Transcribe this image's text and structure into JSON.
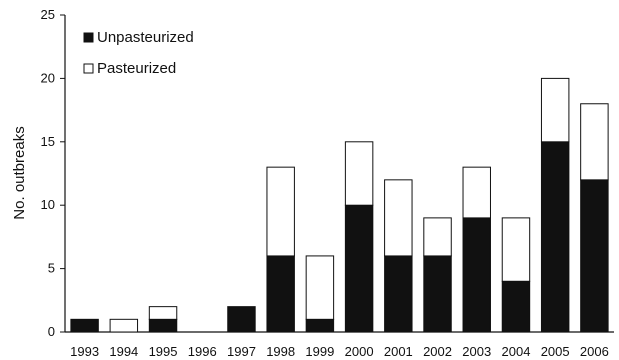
{
  "chart_data": {
    "type": "bar",
    "stacked": true,
    "title": "",
    "xlabel": "",
    "ylabel": "No. outbreaks",
    "ylim": [
      0,
      25
    ],
    "yticks": [
      0,
      5,
      10,
      15,
      20,
      25
    ],
    "grid": false,
    "legend_position": "top-left",
    "categories": [
      "1993",
      "1994",
      "1995",
      "1996",
      "1997",
      "1998",
      "1999",
      "2000",
      "2001",
      "2002",
      "2003",
      "2004",
      "2005",
      "2006"
    ],
    "series": [
      {
        "name": "Unpasteurized",
        "color": "#111111",
        "values": [
          1,
          0,
          1,
          0,
          2,
          6,
          1,
          10,
          6,
          6,
          9,
          4,
          15,
          12
        ]
      },
      {
        "name": "Pasteurized",
        "color": "#ffffff",
        "values": [
          0,
          1,
          1,
          0,
          0,
          7,
          5,
          5,
          6,
          3,
          4,
          5,
          5,
          6
        ]
      }
    ]
  }
}
